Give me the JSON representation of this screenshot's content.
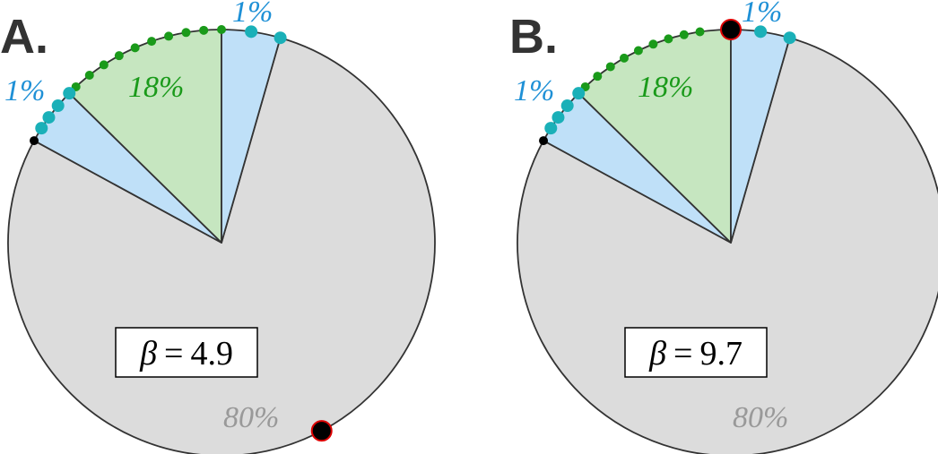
{
  "panels": [
    {
      "label": "A.",
      "right_share": "1%",
      "left_share": "1%",
      "middle_share": "18%",
      "rest_share": "80%",
      "parameter": {
        "symbol": "β",
        "relation": "=",
        "value": "4.9"
      }
    },
    {
      "label": "B.",
      "right_share": "1%",
      "left_share": "1%",
      "middle_share": "18%",
      "rest_share": "80%",
      "parameter": {
        "symbol": "β",
        "relation": "=",
        "value": "9.7"
      }
    }
  ]
}
